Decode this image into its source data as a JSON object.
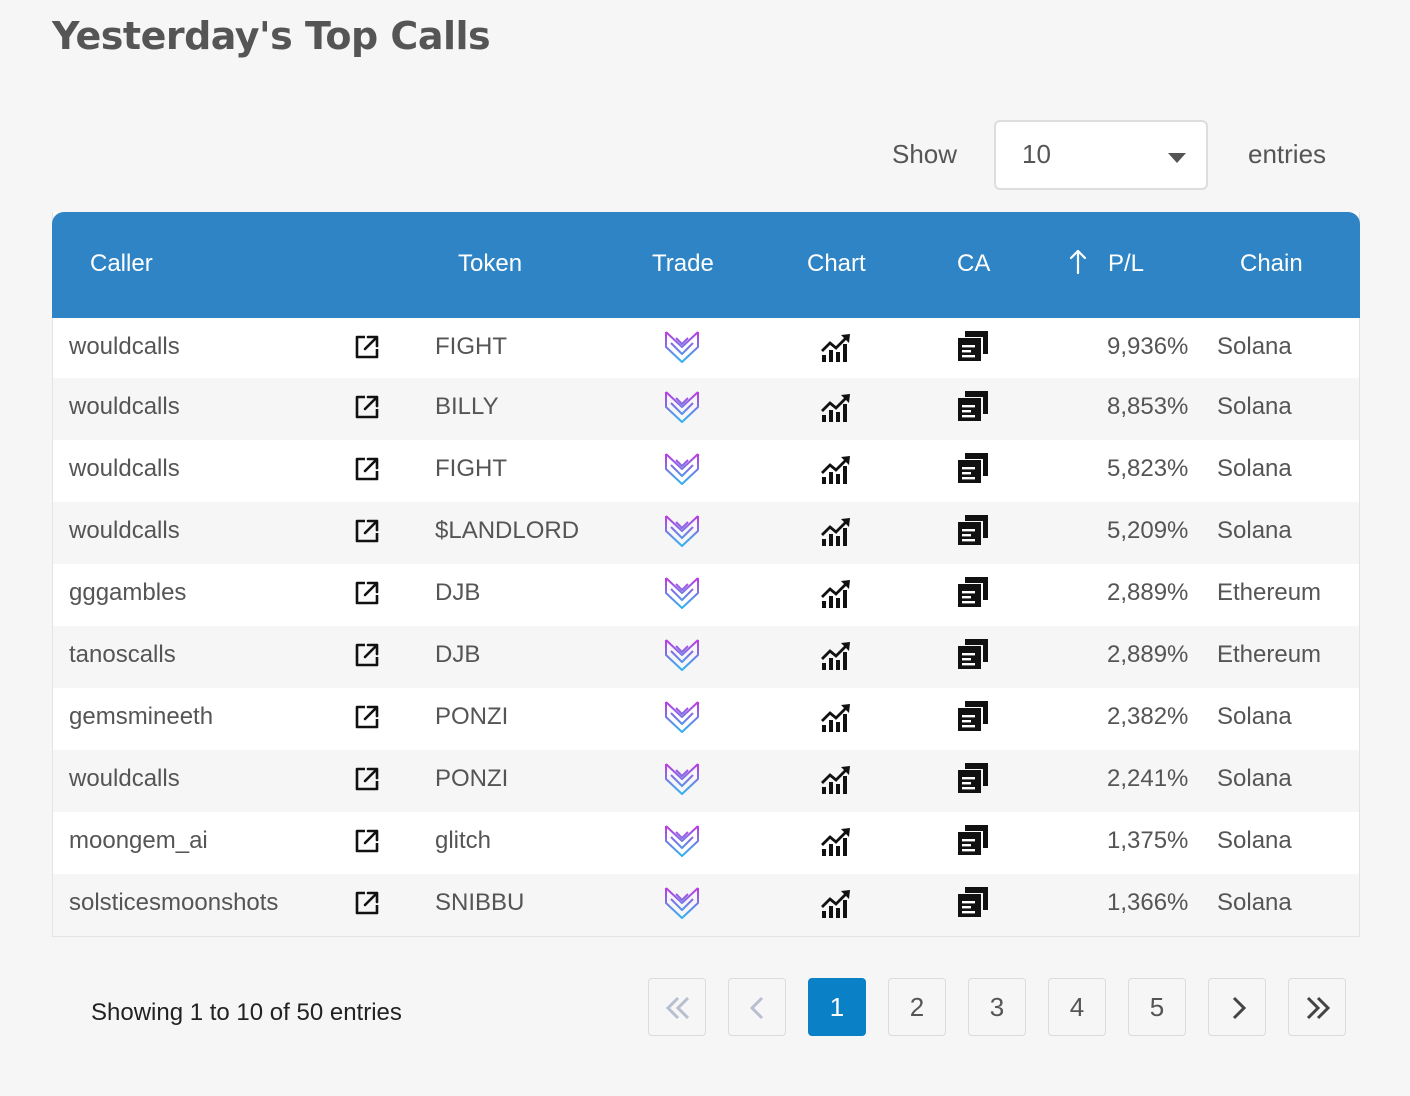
{
  "title": "Yesterday's Top Calls",
  "length": {
    "show_label": "Show",
    "selected": "10",
    "entries_label": "entries"
  },
  "table": {
    "headers": {
      "caller": "Caller",
      "token": "Token",
      "trade": "Trade",
      "chart": "Chart",
      "ca": "CA",
      "pl": "P/L",
      "chain": "Chain"
    },
    "sort": {
      "column": "P/L",
      "icon": "arrow-up-icon"
    },
    "rows": [
      {
        "caller": "wouldcalls",
        "token": "FIGHT",
        "pl": "9,936%",
        "chain": "Solana"
      },
      {
        "caller": "wouldcalls",
        "token": "BILLY",
        "pl": "8,853%",
        "chain": "Solana"
      },
      {
        "caller": "wouldcalls",
        "token": "FIGHT",
        "pl": "5,823%",
        "chain": "Solana"
      },
      {
        "caller": "wouldcalls",
        "token": "$LANDLORD",
        "pl": "5,209%",
        "chain": "Solana"
      },
      {
        "caller": "gggambles",
        "token": "DJB",
        "pl": "2,889%",
        "chain": "Ethereum"
      },
      {
        "caller": "tanoscalls",
        "token": "DJB",
        "pl": "2,889%",
        "chain": "Ethereum"
      },
      {
        "caller": "gemsmineeth",
        "token": "PONZI",
        "pl": "2,382%",
        "chain": "Solana"
      },
      {
        "caller": "wouldcalls",
        "token": "PONZI",
        "pl": "2,241%",
        "chain": "Solana"
      },
      {
        "caller": "moongem_ai",
        "token": "glitch",
        "pl": "1,375%",
        "chain": "Solana"
      },
      {
        "caller": "solsticesmoonshots",
        "token": "SNIBBU",
        "pl": "1,366%",
        "chain": "Solana"
      }
    ],
    "icons": {
      "caller_link": "external-link-icon",
      "trade": "trade-logo-icon",
      "chart": "chart-trend-icon",
      "ca": "copy-icon"
    }
  },
  "pagination": {
    "info": "Showing 1 to 10 of 50 entries",
    "pages": [
      "1",
      "2",
      "3",
      "4",
      "5"
    ],
    "current": "1",
    "icons": {
      "first": "double-chevron-left-icon",
      "prev": "chevron-left-icon",
      "next": "chevron-right-icon",
      "last": "double-chevron-right-icon"
    }
  },
  "colors": {
    "header_bg": "#2e84c4",
    "active_page": "#0a80c6",
    "background": "#f6f6f6"
  }
}
